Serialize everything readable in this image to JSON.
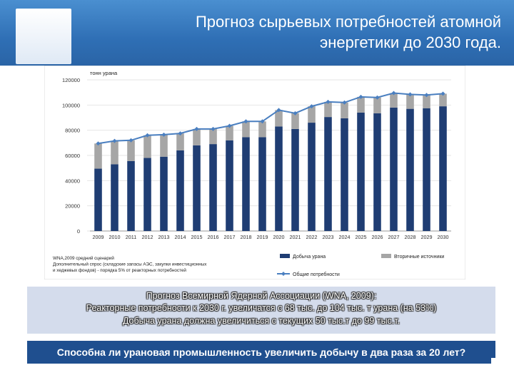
{
  "header": {
    "title_line1": "Прогноз сырьевых потребностей атомной",
    "title_line2": "энергетики до 2030 года."
  },
  "chart_data": {
    "type": "bar",
    "stacked": true,
    "unit_label": "тонн урана",
    "categories": [
      "2009",
      "2010",
      "2011",
      "2012",
      "2013",
      "2014",
      "2015",
      "2016",
      "2017",
      "2018",
      "2019",
      "2020",
      "2021",
      "2022",
      "2023",
      "2024",
      "2025",
      "2026",
      "2027",
      "2028",
      "2029",
      "2030"
    ],
    "series": [
      {
        "name": "Добыча урана",
        "type": "bar",
        "color": "#1f3d73",
        "values": [
          49500,
          53000,
          55500,
          58000,
          59000,
          64000,
          68000,
          69000,
          72000,
          74500,
          74500,
          83000,
          81000,
          86000,
          90500,
          89500,
          94000,
          93500,
          98000,
          97000,
          97500,
          99000
        ]
      },
      {
        "name": "Вторичные источники",
        "type": "bar",
        "color": "#a6a6a6",
        "values": [
          20000,
          18500,
          16500,
          18000,
          17500,
          13500,
          13000,
          12000,
          11500,
          12500,
          12500,
          13000,
          12500,
          13000,
          12000,
          12500,
          12500,
          12500,
          11500,
          11500,
          10500,
          10000
        ]
      },
      {
        "name": "Общие потребности",
        "type": "line",
        "color": "#4a7fc0",
        "values": [
          69500,
          71500,
          72000,
          76000,
          76500,
          77500,
          81000,
          81000,
          83500,
          87000,
          87000,
          96000,
          93500,
          99000,
          102500,
          102000,
          106500,
          106000,
          109500,
          108500,
          108000,
          109000
        ]
      }
    ],
    "yticks": [
      0,
      20000,
      40000,
      60000,
      80000,
      100000,
      120000
    ],
    "ylim": [
      0,
      120000
    ],
    "grid": true,
    "legend_position": "bottom-right",
    "notes": [
      "WNA,2009 средний сценарий",
      "Дополнительный спрос (складские запасы АЭС, закупки инвестиционных",
      "и  хеджевых фондов) - порядка 5% от реакторных потребностей"
    ]
  },
  "info": {
    "line1": "Прогноз Всемирной Ядерной Ассоциации (WNA, 2009):",
    "line2": "Реакторные потребности к 2030 г. увеличатся с 68 тыс. до 104 тыс. т урана (на 53%)",
    "line3": "Добыча урана должна увеличиться с текущих 50 тыс.т до 99 тыс.т."
  },
  "question": "Способна ли урановая промышленность увеличить добычу в два раза за 20 лет?"
}
